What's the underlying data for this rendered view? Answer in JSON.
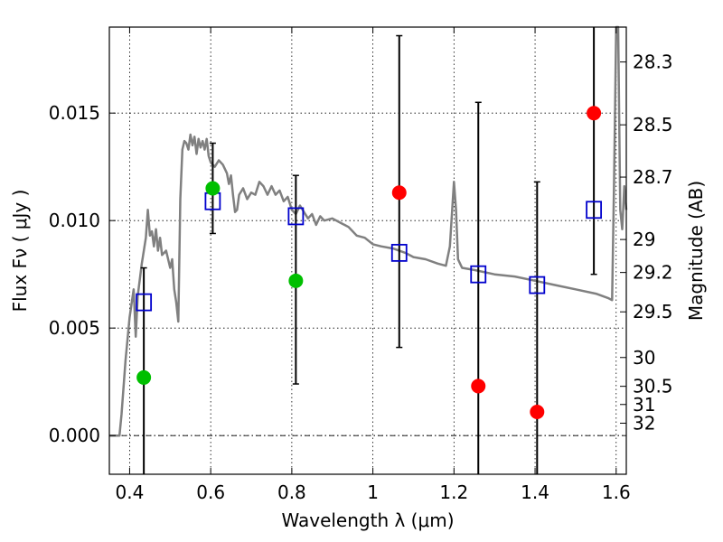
{
  "chart_data": {
    "type": "scatter",
    "title": "",
    "xlabel": "Wavelength  λ (μm)",
    "ylabel": "Flux  Fν  ( μJy )",
    "ylabel_right": "Magnitude (AB)",
    "xlim": [
      0.35,
      1.625
    ],
    "ylim": [
      -0.0018,
      0.019
    ],
    "grid": true,
    "x_ticks": [
      0.4,
      0.6,
      0.8,
      1.0,
      1.2,
      1.4,
      1.6
    ],
    "x_tick_labels": [
      "0.4",
      "0.6",
      "0.8",
      "1",
      "1.2",
      "1.4",
      "1.6"
    ],
    "y_ticks": [
      0.0,
      0.005,
      0.01,
      0.015
    ],
    "y_tick_labels": [
      "0.000",
      "0.005",
      "0.010",
      "0.015"
    ],
    "magnitude_ticks": [
      28.3,
      28.5,
      28.7,
      29,
      29.2,
      29.5,
      30,
      30.5,
      31,
      32
    ],
    "magnitude_tick_labels": [
      "28.3",
      "28.5",
      "28.7",
      "29",
      "29.2",
      "29.5",
      "30",
      "30.5",
      "31",
      "32"
    ],
    "colors": {
      "sed": "#808080",
      "detected": "#00bf00",
      "undetected": "#ff0000",
      "model": "#0000cc",
      "errorbar": "#000000"
    },
    "series": [
      {
        "type": "line",
        "points": [
          [
            0.35,
            0.0
          ],
          [
            0.375,
            0.0
          ],
          [
            0.38,
            0.001
          ],
          [
            0.39,
            0.0035
          ],
          [
            0.4,
            0.0055
          ],
          [
            0.41,
            0.0068
          ],
          [
            0.415,
            0.0046
          ],
          [
            0.42,
            0.0065
          ],
          [
            0.43,
            0.008
          ],
          [
            0.44,
            0.0092
          ],
          [
            0.445,
            0.0105
          ],
          [
            0.45,
            0.0093
          ],
          [
            0.455,
            0.0095
          ],
          [
            0.46,
            0.0088
          ],
          [
            0.465,
            0.0096
          ],
          [
            0.47,
            0.0086
          ],
          [
            0.475,
            0.0092
          ],
          [
            0.48,
            0.0084
          ],
          [
            0.49,
            0.0086
          ],
          [
            0.5,
            0.0078
          ],
          [
            0.505,
            0.0082
          ],
          [
            0.51,
            0.0068
          ],
          [
            0.515,
            0.0062
          ],
          [
            0.52,
            0.0053
          ],
          [
            0.525,
            0.011
          ],
          [
            0.53,
            0.0133
          ],
          [
            0.535,
            0.0137
          ],
          [
            0.54,
            0.0136
          ],
          [
            0.545,
            0.0133
          ],
          [
            0.55,
            0.014
          ],
          [
            0.555,
            0.0135
          ],
          [
            0.56,
            0.0139
          ],
          [
            0.565,
            0.0131
          ],
          [
            0.57,
            0.0138
          ],
          [
            0.575,
            0.0134
          ],
          [
            0.58,
            0.0137
          ],
          [
            0.585,
            0.0133
          ],
          [
            0.59,
            0.0138
          ],
          [
            0.595,
            0.013
          ],
          [
            0.6,
            0.0127
          ],
          [
            0.61,
            0.0125
          ],
          [
            0.62,
            0.0128
          ],
          [
            0.63,
            0.0126
          ],
          [
            0.64,
            0.0122
          ],
          [
            0.645,
            0.0117
          ],
          [
            0.65,
            0.0121
          ],
          [
            0.655,
            0.0112
          ],
          [
            0.66,
            0.0104
          ],
          [
            0.665,
            0.0105
          ],
          [
            0.67,
            0.0112
          ],
          [
            0.68,
            0.0115
          ],
          [
            0.69,
            0.011
          ],
          [
            0.7,
            0.0113
          ],
          [
            0.71,
            0.0112
          ],
          [
            0.72,
            0.0118
          ],
          [
            0.73,
            0.0116
          ],
          [
            0.74,
            0.0112
          ],
          [
            0.75,
            0.0116
          ],
          [
            0.76,
            0.0112
          ],
          [
            0.77,
            0.0114
          ],
          [
            0.78,
            0.0109
          ],
          [
            0.79,
            0.0111
          ],
          [
            0.8,
            0.0105
          ],
          [
            0.81,
            0.0103
          ],
          [
            0.82,
            0.0107
          ],
          [
            0.83,
            0.0104
          ],
          [
            0.84,
            0.0101
          ],
          [
            0.85,
            0.0103
          ],
          [
            0.86,
            0.0098
          ],
          [
            0.87,
            0.0102
          ],
          [
            0.88,
            0.01
          ],
          [
            0.9,
            0.0101
          ],
          [
            0.92,
            0.0099
          ],
          [
            0.94,
            0.0097
          ],
          [
            0.96,
            0.0093
          ],
          [
            0.98,
            0.0092
          ],
          [
            1.0,
            0.0089
          ],
          [
            1.02,
            0.0088
          ],
          [
            1.05,
            0.0087
          ],
          [
            1.08,
            0.0085
          ],
          [
            1.1,
            0.0083
          ],
          [
            1.13,
            0.0082
          ],
          [
            1.16,
            0.008
          ],
          [
            1.18,
            0.0079
          ],
          [
            1.19,
            0.0088
          ],
          [
            1.2,
            0.0118
          ],
          [
            1.205,
            0.0105
          ],
          [
            1.21,
            0.0082
          ],
          [
            1.22,
            0.0078
          ],
          [
            1.25,
            0.0077
          ],
          [
            1.3,
            0.0075
          ],
          [
            1.35,
            0.0074
          ],
          [
            1.4,
            0.0072
          ],
          [
            1.45,
            0.007
          ],
          [
            1.5,
            0.0068
          ],
          [
            1.55,
            0.0066
          ],
          [
            1.58,
            0.0064
          ],
          [
            1.59,
            0.0063
          ],
          [
            1.595,
            0.0119
          ],
          [
            1.6,
            0.019
          ],
          [
            1.605,
            0.019
          ],
          [
            1.61,
            0.0105
          ],
          [
            1.615,
            0.0096
          ],
          [
            1.62,
            0.0116
          ],
          [
            1.625,
            0.0105
          ]
        ]
      },
      {
        "type": "scatter",
        "marker": "circle",
        "color": "#00bf00",
        "x": [
          0.435,
          0.605,
          0.81
        ],
        "y": [
          0.0027,
          0.0115,
          0.0072
        ]
      },
      {
        "type": "scatter",
        "marker": "circle",
        "color": "#ff0000",
        "x": [
          1.065,
          1.26,
          1.405,
          1.545
        ],
        "y": [
          0.0113,
          0.0023,
          0.0011,
          0.015
        ]
      },
      {
        "type": "scatter",
        "marker": "open-square",
        "color": "#0000cc",
        "x": [
          0.435,
          0.605,
          0.81,
          1.065,
          1.26,
          1.405,
          1.545
        ],
        "y": [
          0.0062,
          0.0109,
          0.0102,
          0.0085,
          0.0075,
          0.007,
          0.0105
        ]
      },
      {
        "type": "errorbar",
        "color": "#000000",
        "x": [
          0.435,
          0.605,
          0.81,
          1.065,
          1.26,
          1.405,
          1.545
        ],
        "y_low": [
          -0.0018,
          0.0094,
          0.0024,
          0.0041,
          -0.0018,
          -0.0018,
          0.0075
        ],
        "y_high": [
          0.0078,
          0.0136,
          0.0121,
          0.0186,
          0.0155,
          0.0118,
          0.019
        ]
      }
    ]
  }
}
